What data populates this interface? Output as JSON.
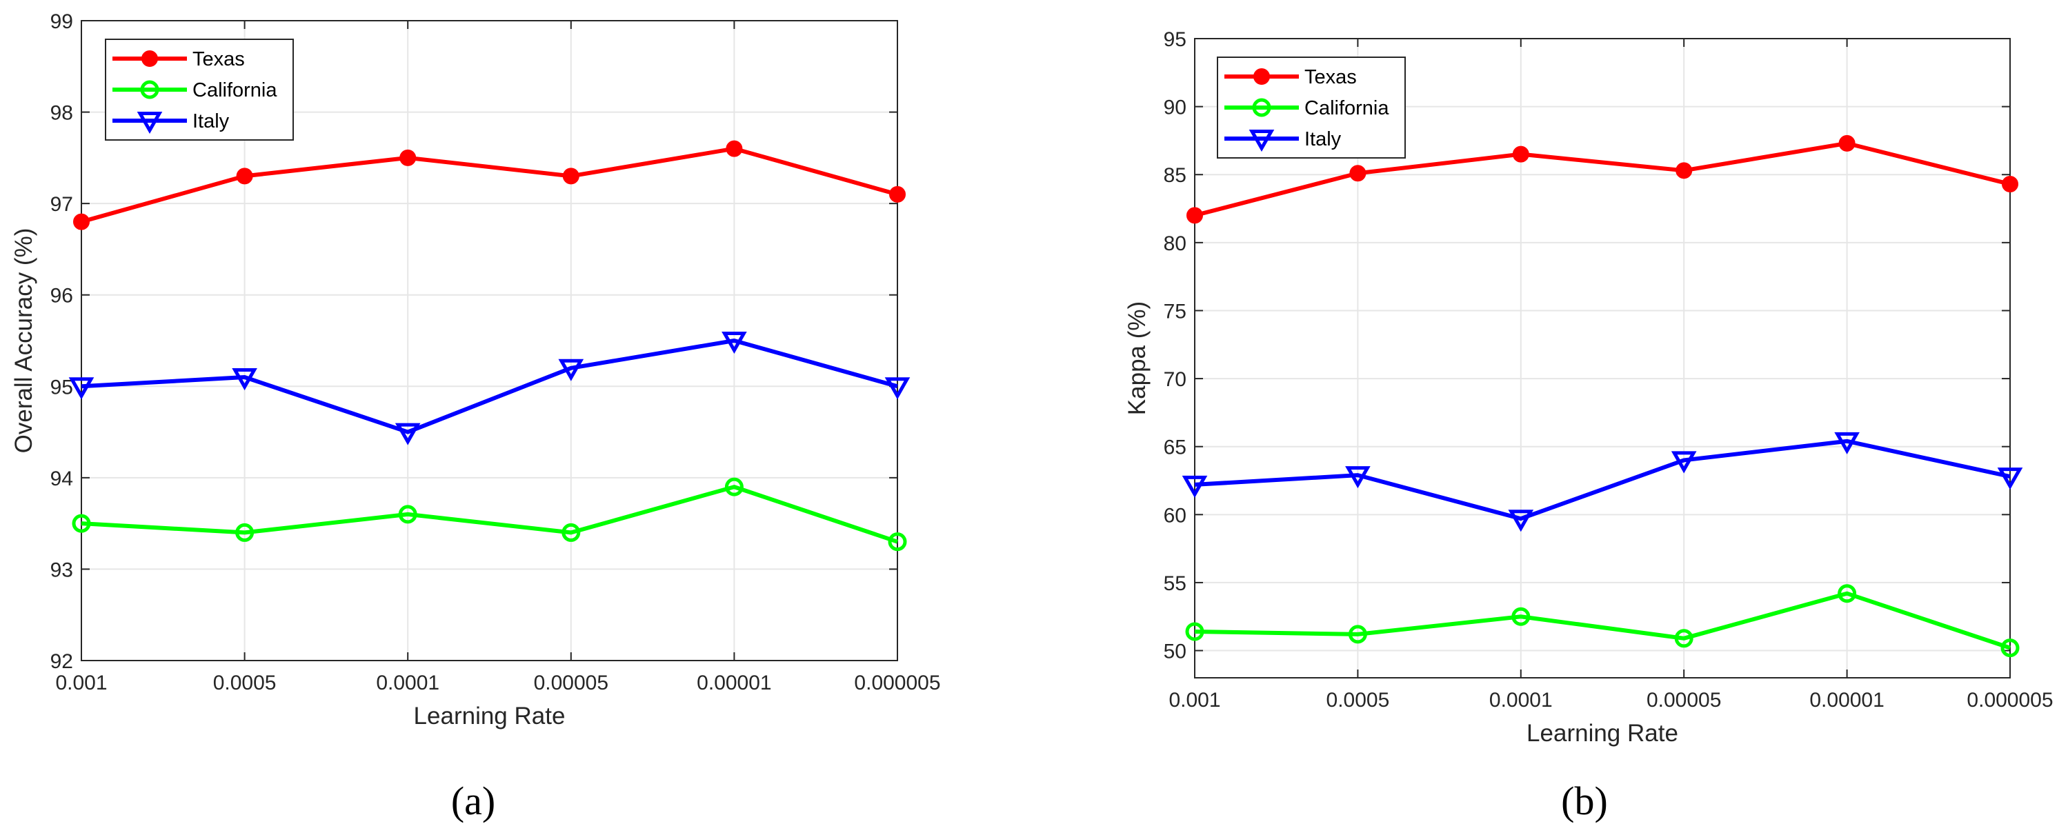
{
  "chart_data": [
    {
      "type": "line",
      "title": "",
      "caption": "(a)",
      "xlabel": "Learning Rate",
      "ylabel": "Overall Accuracy (%)",
      "categories": [
        "0.001",
        "0.0005",
        "0.0001",
        "0.00005",
        "0.00001",
        "0.000005"
      ],
      "ylim": [
        92,
        99
      ],
      "yticks": [
        92,
        93,
        94,
        95,
        96,
        97,
        98,
        99
      ],
      "grid": true,
      "legend": "top-left",
      "series": [
        {
          "name": "Texas",
          "color": "#ff0000",
          "marker": "dot",
          "values": [
            96.8,
            97.3,
            97.5,
            97.3,
            97.6,
            97.1
          ]
        },
        {
          "name": "California",
          "color": "#00ff00",
          "marker": "circle",
          "values": [
            93.5,
            93.4,
            93.6,
            93.4,
            93.9,
            93.3
          ]
        },
        {
          "name": "Italy",
          "color": "#0000ff",
          "marker": "triangle-down",
          "values": [
            95.0,
            95.1,
            94.5,
            95.2,
            95.5,
            95.0
          ]
        }
      ]
    },
    {
      "type": "line",
      "title": "",
      "caption": "(b)",
      "xlabel": "Learning Rate",
      "ylabel": "Kappa (%)",
      "categories": [
        "0.001",
        "0.0005",
        "0.0001",
        "0.00005",
        "0.00001",
        "0.000005"
      ],
      "ylim": [
        48,
        95
      ],
      "yticks": [
        50,
        55,
        60,
        65,
        70,
        75,
        80,
        85,
        90,
        95
      ],
      "grid": true,
      "legend": "top-left",
      "series": [
        {
          "name": "Texas",
          "color": "#ff0000",
          "marker": "dot",
          "values": [
            82.0,
            85.1,
            86.5,
            85.3,
            87.3,
            84.3
          ]
        },
        {
          "name": "California",
          "color": "#00ff00",
          "marker": "circle",
          "values": [
            51.4,
            51.2,
            52.5,
            50.9,
            54.2,
            50.2
          ]
        },
        {
          "name": "Italy",
          "color": "#0000ff",
          "marker": "triangle-down",
          "values": [
            62.2,
            62.9,
            59.7,
            64.0,
            65.4,
            62.8
          ]
        }
      ]
    }
  ]
}
